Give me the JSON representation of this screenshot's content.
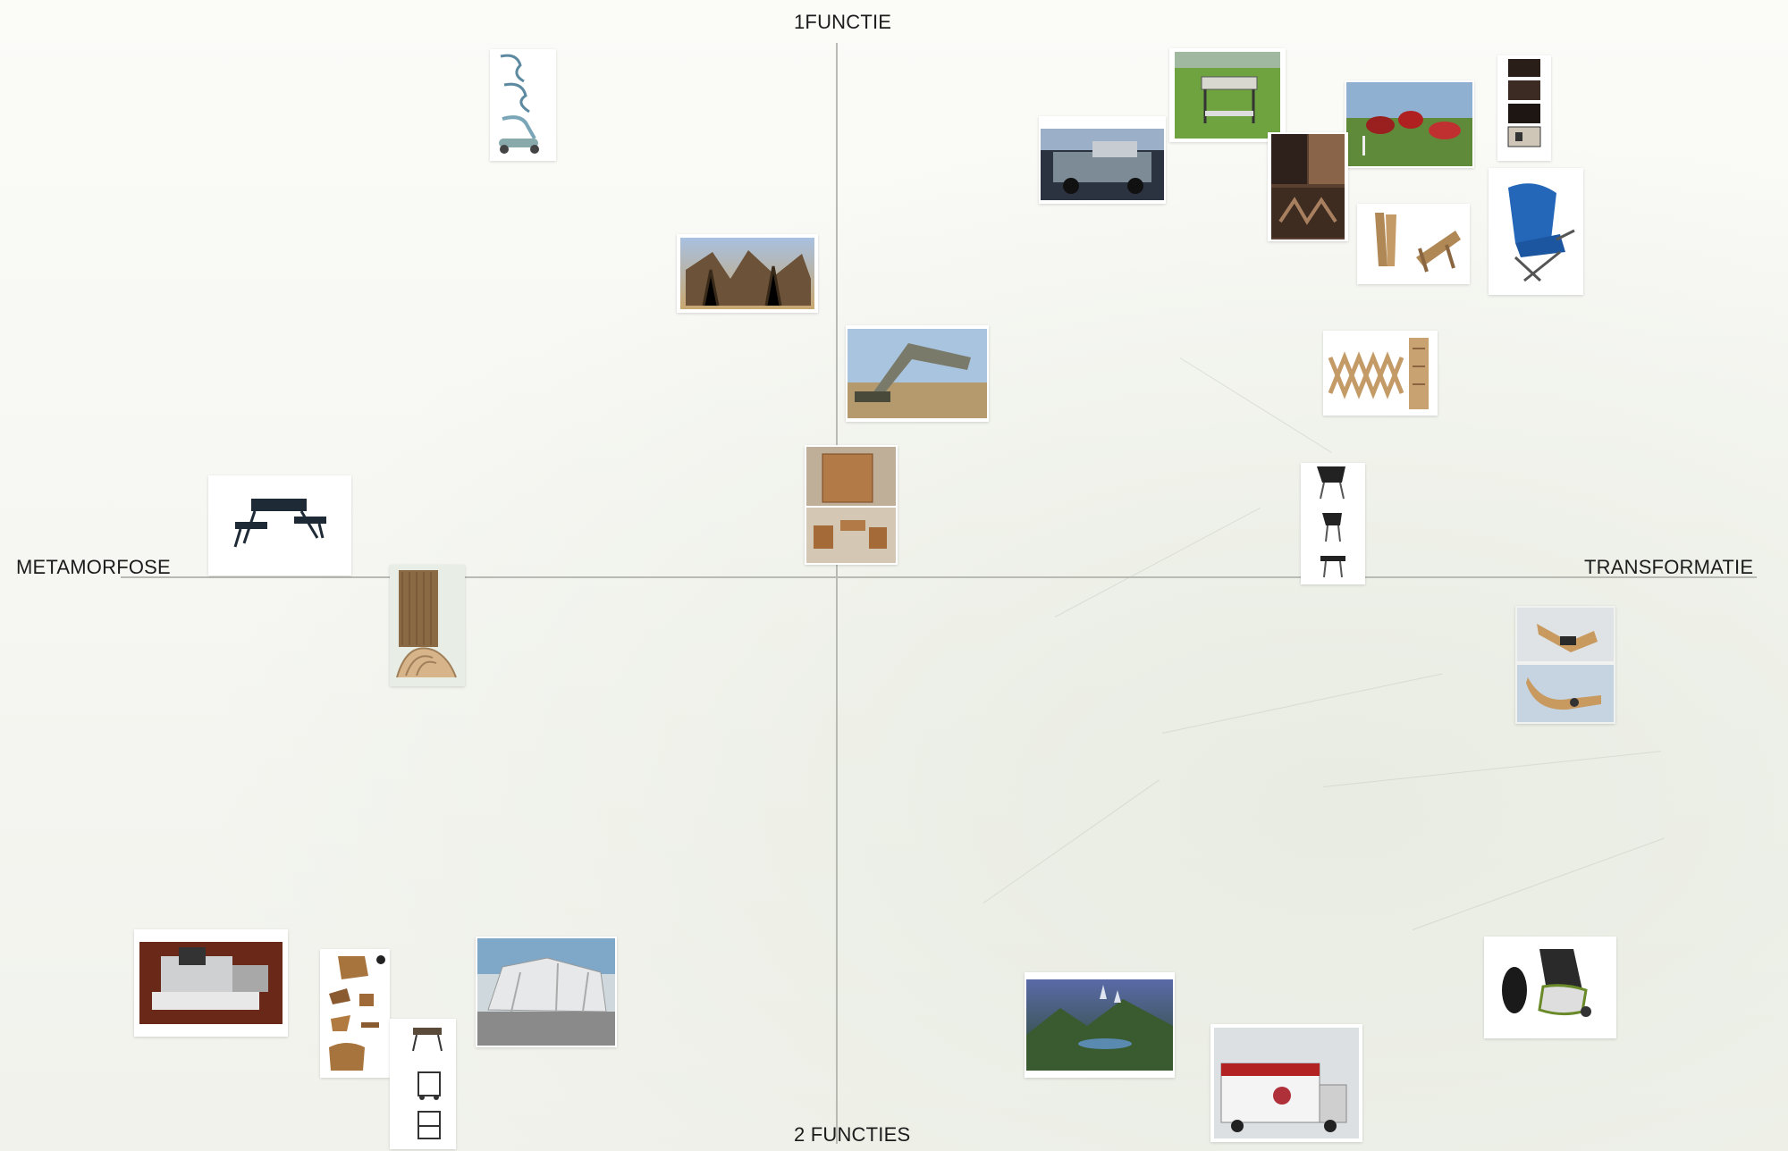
{
  "axes": {
    "top": "1FUNCTIE",
    "bottom": "2 FUNCTIES",
    "left": "METAMORFOSE",
    "right": "TRANSFORMATIE"
  },
  "colors": {
    "board": "#f3f4ef",
    "axis_line": "#b9bab4",
    "label": "#1c1c1c"
  },
  "photos": [
    {
      "name": "photo-folding-stool-sketch",
      "icon": "folding-stool-sketches"
    },
    {
      "name": "photo-fantasy-landscape",
      "icon": "fantasy-architecture"
    },
    {
      "name": "photo-pickup-camper",
      "icon": "pickup-truck-camper"
    },
    {
      "name": "photo-camping-table-grass",
      "icon": "camping-table"
    },
    {
      "name": "photo-pod-tents",
      "icon": "red-pod-tents"
    },
    {
      "name": "photo-storage-column",
      "icon": "storage-cubes"
    },
    {
      "name": "photo-wooden-shelves",
      "icon": "wooden-shelves"
    },
    {
      "name": "photo-wooden-chairs",
      "icon": "slatted-wooden-chairs"
    },
    {
      "name": "photo-blue-camp-chair",
      "icon": "folding-camp-chair"
    },
    {
      "name": "photo-bridge-vehicle",
      "icon": "bridge-layer-vehicle"
    },
    {
      "name": "photo-folding-rack",
      "icon": "expandable-wooden-rack"
    },
    {
      "name": "photo-cube-furniture",
      "icon": "cube-furniture"
    },
    {
      "name": "photo-folding-chair-steps",
      "icon": "folding-chair-sequence"
    },
    {
      "name": "photo-picnic-table",
      "icon": "folding-picnic-table"
    },
    {
      "name": "photo-wooden-wave-chair",
      "icon": "wooden-wave-chair"
    },
    {
      "name": "photo-flexible-object",
      "icon": "flexible-object"
    },
    {
      "name": "photo-workshop-machine",
      "icon": "workshop-machine"
    },
    {
      "name": "photo-wooden-parts",
      "icon": "wooden-parts"
    },
    {
      "name": "photo-folding-cart-steps",
      "icon": "folding-cart-sequence"
    },
    {
      "name": "photo-trailer-tent",
      "icon": "trailer-tent"
    },
    {
      "name": "photo-fantasy-valley",
      "icon": "fantasy-valley"
    },
    {
      "name": "photo-promo-truck",
      "icon": "promotion-truck"
    },
    {
      "name": "photo-rolling-luggage",
      "icon": "rolling-luggage"
    }
  ]
}
